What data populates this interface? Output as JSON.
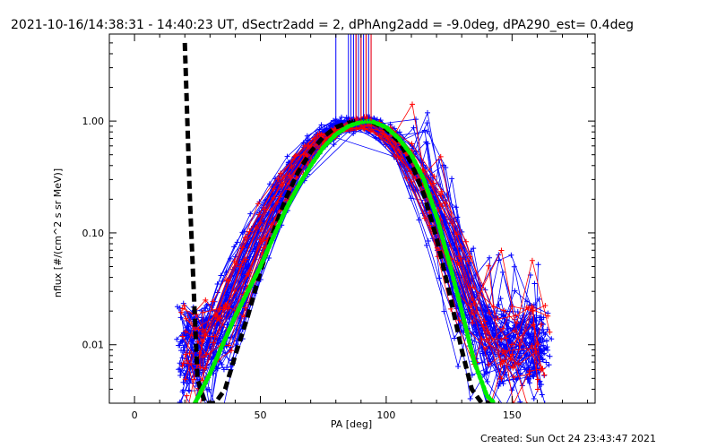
{
  "chart_data": {
    "type": "line",
    "title": "2021-10-16/14:38:31 - 14:40:23 UT, dSectr2add = 2, dPhAng2add = -9.0deg, dPA290_est=  0.4deg",
    "xlabel": "PA [deg]",
    "ylabel": "nflux [#/(cm^2 s sr MeV)]",
    "xlim": [
      -10,
      183
    ],
    "ylim": [
      0.003,
      6
    ],
    "yscale": "log",
    "xticks": [
      0,
      50,
      100,
      150
    ],
    "xtick_labels": [
      "0",
      "50",
      "100",
      "150"
    ],
    "yticks": [
      0.01,
      0.1,
      1.0
    ],
    "ytick_labels": [
      "0.01",
      "0.10",
      "1.00"
    ],
    "footer": "Created: Sun Oct 24 23:43:47 2021",
    "colors": {
      "blue": "#0000ff",
      "red": "#ff0000",
      "black": "#000000",
      "green": "#00ee00"
    },
    "series_style": [
      {
        "color": "blue",
        "marker": "plus",
        "count": 60
      },
      {
        "color": "red",
        "marker": "plus",
        "count": 14
      }
    ],
    "fit_curves": [
      {
        "color": "black",
        "style": "dashed",
        "x": [
          20,
          22,
          25,
          28,
          32,
          36,
          40,
          45,
          50,
          55,
          60,
          65,
          70,
          75,
          80,
          85,
          88,
          90,
          92,
          95,
          100,
          105,
          110,
          115,
          120,
          125,
          130,
          134,
          138,
          142,
          145
        ],
        "y": [
          5.0,
          0.2,
          0.005,
          0.003,
          0.003,
          0.004,
          0.008,
          0.018,
          0.045,
          0.1,
          0.2,
          0.35,
          0.53,
          0.72,
          0.88,
          0.97,
          1.0,
          1.0,
          1.0,
          0.96,
          0.85,
          0.66,
          0.42,
          0.22,
          0.09,
          0.03,
          0.009,
          0.004,
          0.003,
          0.003,
          0.003
        ]
      },
      {
        "color": "green",
        "style": "dotted",
        "x": [
          24,
          30,
          35,
          40,
          45,
          50,
          55,
          60,
          65,
          70,
          75,
          80,
          85,
          90,
          93,
          95,
          100,
          105,
          110,
          115,
          120,
          125,
          130,
          135,
          140,
          143
        ],
        "y": [
          0.003,
          0.0055,
          0.01,
          0.018,
          0.03,
          0.05,
          0.09,
          0.16,
          0.26,
          0.4,
          0.58,
          0.76,
          0.9,
          0.98,
          1.0,
          0.98,
          0.88,
          0.7,
          0.5,
          0.3,
          0.14,
          0.055,
          0.02,
          0.007,
          0.0035,
          0.003
        ]
      }
    ],
    "top_markers": {
      "blue": [
        80,
        85,
        86,
        87,
        88,
        89,
        90,
        91,
        92,
        93,
        94
      ],
      "red": [
        88,
        90,
        92,
        94
      ]
    }
  }
}
